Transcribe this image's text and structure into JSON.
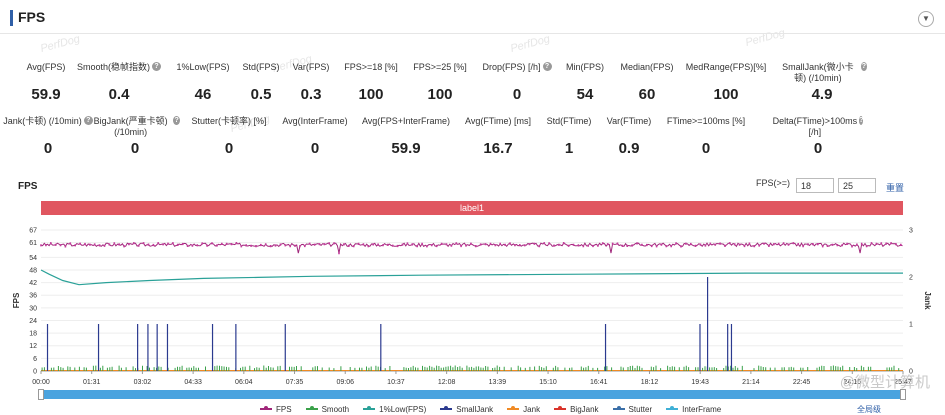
{
  "header": {
    "title": "FPS"
  },
  "watermarks": [
    "PerfDog",
    "PerfDog",
    "PerfDog",
    "PerfDog",
    "PerfDog"
  ],
  "metrics_row1": [
    {
      "label": "Avg(FPS)",
      "value": "59.9",
      "help": false
    },
    {
      "label": "Smooth(稳帧指数)",
      "value": "0.4",
      "help": true
    },
    {
      "label": "1%Low(FPS)",
      "value": "46",
      "help": false
    },
    {
      "label": "Std(FPS)",
      "value": "0.5",
      "help": false
    },
    {
      "label": "Var(FPS)",
      "value": "0.3",
      "help": false
    },
    {
      "label": "FPS>=18 [%]",
      "value": "100",
      "help": false
    },
    {
      "label": "FPS>=25 [%]",
      "value": "100",
      "help": false
    },
    {
      "label": "Drop(FPS) [/h]",
      "value": "0",
      "help": true
    },
    {
      "label": "Min(FPS)",
      "value": "54",
      "help": false
    },
    {
      "label": "Median(FPS)",
      "value": "60",
      "help": false
    },
    {
      "label": "MedRange(FPS)[%]",
      "value": "100",
      "help": false
    },
    {
      "label": "SmallJank(微小卡顿) (/10min)",
      "value": "4.9",
      "help": true
    }
  ],
  "metrics_row2": [
    {
      "label": "Jank(卡顿) (/10min)",
      "value": "0",
      "help": true
    },
    {
      "label": "BigJank(严重卡顿) (/10min)",
      "value": "0",
      "help": true
    },
    {
      "label": "Stutter(卡顿率) [%]",
      "value": "0",
      "help": false
    },
    {
      "label": "Avg(InterFrame)",
      "value": "0",
      "help": false
    },
    {
      "label": "Avg(FPS+InterFrame)",
      "value": "59.9",
      "help": false
    },
    {
      "label": "Avg(FTime) [ms]",
      "value": "16.7",
      "help": false
    },
    {
      "label": "Std(FTime)",
      "value": "1",
      "help": false
    },
    {
      "label": "Var(FTime)",
      "value": "0.9",
      "help": false
    },
    {
      "label": "FTime>=100ms [%]",
      "value": "0",
      "help": false
    },
    {
      "label": "Delta(FTime)>100ms [/h]",
      "value": "0",
      "help": true
    }
  ],
  "chart_panel": {
    "title": "FPS",
    "threshold_label": "FPS(>=)",
    "threshold_1": "18",
    "threshold_2": "25",
    "reset_label": "重置",
    "band_label": "label1",
    "zoom_all_label": "全局级",
    "corner_watermark": "@微型计算机"
  },
  "legend": [
    {
      "name": "FPS",
      "color": "#a0267a"
    },
    {
      "name": "Smooth",
      "color": "#3aa14a"
    },
    {
      "name": "1%Low(FPS)",
      "color": "#2aa198"
    },
    {
      "name": "SmallJank",
      "color": "#2b3a8f"
    },
    {
      "name": "Jank",
      "color": "#f08a24"
    },
    {
      "name": "BigJank",
      "color": "#d9342b"
    },
    {
      "name": "Stutter",
      "color": "#3b6fa8"
    },
    {
      "name": "InterFrame",
      "color": "#3fb0d6"
    }
  ],
  "chart_data": {
    "type": "line",
    "ylabel": "FPS",
    "y2label": "Jank",
    "ylim": [
      0,
      67
    ],
    "y2lim": [
      0,
      3
    ],
    "y_ticks": [
      "67",
      "61",
      "54",
      "48",
      "42",
      "36",
      "30",
      "24",
      "18",
      "12",
      "6",
      "0"
    ],
    "y2_ticks": [
      "3",
      "2",
      "1",
      "0"
    ],
    "x_ticks": [
      "00:00",
      "01:31",
      "03:02",
      "04:33",
      "06:04",
      "07:35",
      "09:06",
      "10:37",
      "12:08",
      "13:39",
      "15:10",
      "16:41",
      "18:12",
      "19:43",
      "21:14",
      "22:45",
      "24:16",
      "25:47"
    ],
    "duration_s": 1588,
    "fps_level": 60,
    "low_fps_points": [
      {
        "t": 0,
        "v": 48
      },
      {
        "t": 15,
        "v": 46
      },
      {
        "t": 40,
        "v": 43
      },
      {
        "t": 70,
        "v": 41
      },
      {
        "t": 120,
        "v": 42
      },
      {
        "t": 200,
        "v": 43
      },
      {
        "t": 300,
        "v": 44
      },
      {
        "t": 400,
        "v": 44.5
      },
      {
        "t": 500,
        "v": 45
      },
      {
        "t": 700,
        "v": 45.5
      },
      {
        "t": 1000,
        "v": 46
      },
      {
        "t": 1300,
        "v": 46.5
      },
      {
        "t": 1588,
        "v": 46.5
      }
    ],
    "small_jank_times": [
      12,
      106,
      178,
      197,
      214,
      233,
      316,
      359,
      450,
      626,
      1040,
      1214,
      1228,
      1265,
      1272
    ]
  }
}
